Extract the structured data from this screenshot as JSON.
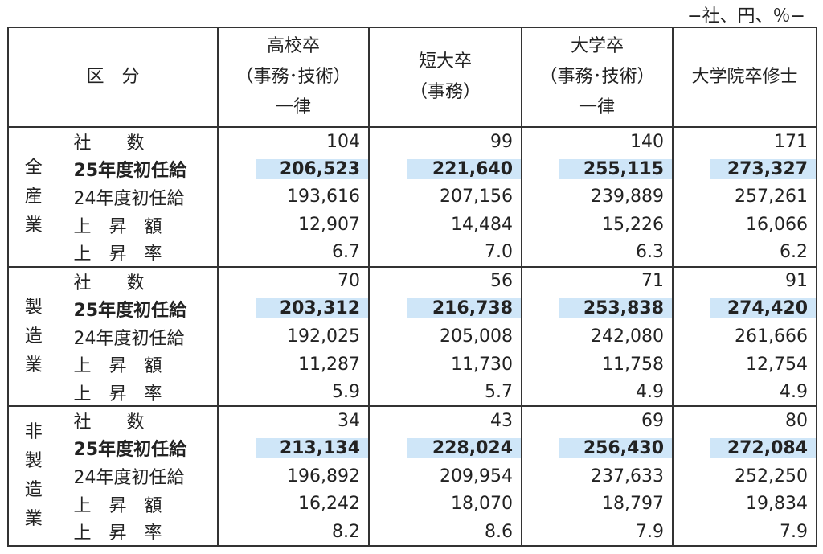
{
  "unit_note": "−社、円、％−",
  "header": {
    "category": "区　分",
    "columns": [
      [
        "高校卒",
        "（事務･技術）",
        "一律"
      ],
      [
        "短大卒",
        "（事務）"
      ],
      [
        "大学卒",
        "（事務･技術）",
        "一律"
      ],
      [
        "大学院卒修士"
      ]
    ]
  },
  "row_labels": [
    "社　　数",
    "25年度初任給",
    "24年度初任給",
    "上　昇　額",
    "上　昇　率"
  ],
  "groups": [
    {
      "name_chars": [
        "全",
        "産",
        "業"
      ],
      "rows": [
        [
          "104",
          "99",
          "140",
          "171"
        ],
        [
          "206,523",
          "221,640",
          "255,115",
          "273,327"
        ],
        [
          "193,616",
          "207,156",
          "239,889",
          "257,261"
        ],
        [
          "12,907",
          "14,484",
          "15,226",
          "16,066"
        ],
        [
          "6.7",
          "7.0",
          "6.3",
          "6.2"
        ]
      ]
    },
    {
      "name_chars": [
        "製",
        "造",
        "業"
      ],
      "rows": [
        [
          "70",
          "56",
          "71",
          "91"
        ],
        [
          "203,312",
          "216,738",
          "253,838",
          "274,420"
        ],
        [
          "192,025",
          "205,008",
          "242,080",
          "261,666"
        ],
        [
          "11,287",
          "11,730",
          "11,758",
          "12,754"
        ],
        [
          "5.9",
          "5.7",
          "4.9",
          "4.9"
        ]
      ]
    },
    {
      "name_chars": [
        "非",
        "製",
        "造",
        "業"
      ],
      "rows": [
        [
          "34",
          "43",
          "69",
          "80"
        ],
        [
          "213,134",
          "228,024",
          "256,430",
          "272,084"
        ],
        [
          "196,892",
          "209,954",
          "237,633",
          "252,250"
        ],
        [
          "16,242",
          "18,070",
          "18,797",
          "19,834"
        ],
        [
          "8.2",
          "8.6",
          "7.9",
          "7.9"
        ]
      ]
    }
  ],
  "colors": {
    "highlight": "#cfe6f8",
    "border": "#333333"
  }
}
